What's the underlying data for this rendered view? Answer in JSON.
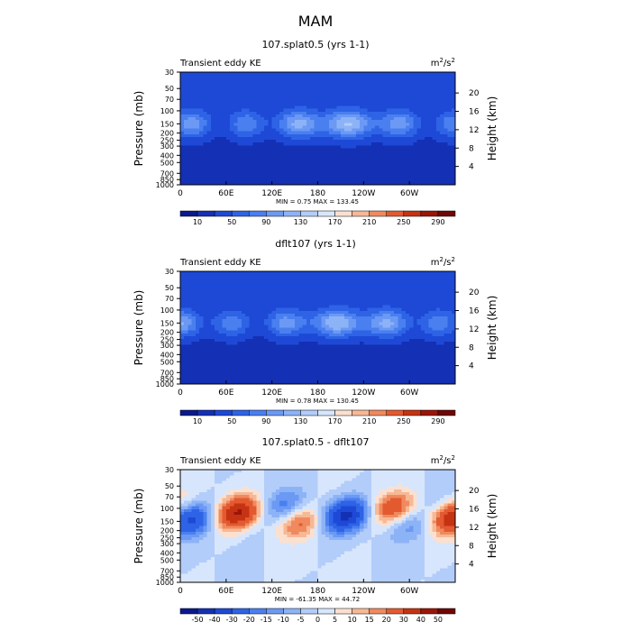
{
  "figure": {
    "title": "MAM"
  },
  "chart_data": [
    {
      "type": "heatmap",
      "title": "107.splat0.5 (yrs 1-1)",
      "subtitle_left": "Transient eddy KE",
      "units": "m²/s²",
      "units_base": "m",
      "units_exp1": "2",
      "units_mid": "/s",
      "units_exp2": "2",
      "xlabel": "",
      "ylabel": "Pressure (mb)",
      "ylabel_right": "Height (km)",
      "x_ticks": [
        "0",
        "60E",
        "120E",
        "180",
        "120W",
        "60W"
      ],
      "y_ticks": [
        "30",
        "50",
        "70",
        "100",
        "150",
        "200",
        "250",
        "300",
        "400",
        "500",
        "700",
        "850",
        "1000"
      ],
      "y_ticks_right": [
        "20",
        "16",
        "12",
        "8",
        "4"
      ],
      "stats": "MIN =    0.75   MAX = 133.45",
      "min": 0.75,
      "max": 133.45,
      "colorbar_labels": [
        "10",
        "50",
        "90",
        "130",
        "170",
        "210",
        "250",
        "290"
      ],
      "levels": [
        10,
        30,
        50,
        70,
        90,
        110,
        130,
        150,
        170,
        190,
        210,
        230,
        250,
        270,
        290
      ],
      "colors": [
        "#0a1a8c",
        "#1430b4",
        "#1e49d6",
        "#2e63e6",
        "#4a7ff0",
        "#6b99f4",
        "#8db3f7",
        "#b3cdfa",
        "#d7e6fc",
        "#fbe0d0",
        "#f7b896",
        "#f08a5e",
        "#e35a30",
        "#c63313",
        "#9a1608",
        "#6e0804"
      ]
    },
    {
      "type": "heatmap",
      "title": "dflt107 (yrs 1-1)",
      "subtitle_left": "Transient eddy KE",
      "units": "m²/s²",
      "units_base": "m",
      "units_exp1": "2",
      "units_mid": "/s",
      "units_exp2": "2",
      "xlabel": "",
      "ylabel": "Pressure (mb)",
      "ylabel_right": "Height (km)",
      "x_ticks": [
        "0",
        "60E",
        "120E",
        "180",
        "120W",
        "60W"
      ],
      "y_ticks": [
        "30",
        "50",
        "70",
        "100",
        "150",
        "200",
        "250",
        "300",
        "400",
        "500",
        "700",
        "850",
        "1000"
      ],
      "y_ticks_right": [
        "20",
        "16",
        "12",
        "8",
        "4"
      ],
      "stats": "MIN =    0.78   MAX = 130.45",
      "min": 0.78,
      "max": 130.45,
      "colorbar_labels": [
        "10",
        "50",
        "90",
        "130",
        "170",
        "210",
        "250",
        "290"
      ],
      "levels": [
        10,
        30,
        50,
        70,
        90,
        110,
        130,
        150,
        170,
        190,
        210,
        230,
        250,
        270,
        290
      ],
      "colors": [
        "#0a1a8c",
        "#1430b4",
        "#1e49d6",
        "#2e63e6",
        "#4a7ff0",
        "#6b99f4",
        "#8db3f7",
        "#b3cdfa",
        "#d7e6fc",
        "#fbe0d0",
        "#f7b896",
        "#f08a5e",
        "#e35a30",
        "#c63313",
        "#9a1608",
        "#6e0804"
      ]
    },
    {
      "type": "heatmap",
      "title": "107.splat0.5 - dflt107",
      "subtitle_left": "Transient eddy KE",
      "units": "m²/s²",
      "units_base": "m",
      "units_exp1": "2",
      "units_mid": "/s",
      "units_exp2": "2",
      "xlabel": "",
      "ylabel": "Pressure (mb)",
      "ylabel_right": "Height (km)",
      "x_ticks": [
        "0",
        "60E",
        "120E",
        "180",
        "120W",
        "60W"
      ],
      "y_ticks": [
        "30",
        "50",
        "70",
        "100",
        "150",
        "200",
        "250",
        "300",
        "400",
        "500",
        "700",
        "850",
        "1000"
      ],
      "y_ticks_right": [
        "20",
        "16",
        "12",
        "8",
        "4"
      ],
      "stats": "MIN =  -61.35   MAX =  44.72",
      "min": -61.35,
      "max": 44.72,
      "colorbar_labels": [
        "-50",
        "-40",
        "-30",
        "-20",
        "-15",
        "-10",
        "-5",
        "0",
        "5",
        "10",
        "15",
        "20",
        "30",
        "40",
        "50"
      ],
      "levels": [
        -50,
        -40,
        -30,
        -20,
        -15,
        -10,
        -5,
        0,
        5,
        10,
        15,
        20,
        30,
        40,
        50
      ],
      "colors": [
        "#0a1a8c",
        "#1430b4",
        "#1e49d6",
        "#2e63e6",
        "#4a7ff0",
        "#6b99f4",
        "#8db3f7",
        "#b3cdfa",
        "#d7e6fc",
        "#fbe0d0",
        "#f7b896",
        "#f08a5e",
        "#e35a30",
        "#c63313",
        "#9a1608",
        "#6e0804"
      ]
    }
  ]
}
